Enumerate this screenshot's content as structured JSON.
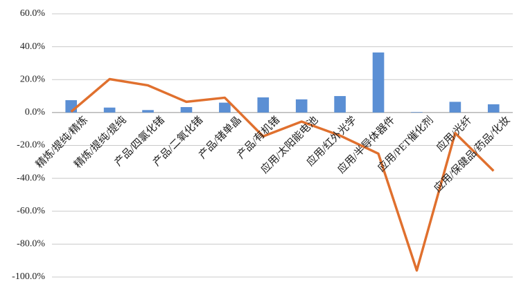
{
  "chart_data": {
    "type": "combo",
    "categories": [
      "精炼/提纯/精炼",
      "精炼/提纯/提纯",
      "产品/四氯化锗",
      "产品/二氧化锗",
      "产品/锗单晶",
      "产品/有机锗",
      "应用/太阳能电池",
      "应用/红外光学",
      "应用/半导体器件",
      "应用/PET催化剂",
      "应用/光纤",
      "应用/保健品/药品/化妆"
    ],
    "series": [
      {
        "type": "bar",
        "color": "#5b8fd4",
        "values": [
          7.5,
          3,
          1.5,
          3.3,
          6,
          9.2,
          8,
          10,
          36.5,
          0.3,
          6.5,
          5
        ]
      },
      {
        "type": "line",
        "color": "#e0702e",
        "values": [
          0.5,
          20.3,
          16.5,
          6.5,
          9,
          -14.5,
          -5.5,
          -14,
          -25,
          -96,
          -12.5,
          -35.5
        ]
      }
    ],
    "ylim": [
      -100,
      60
    ],
    "yticks": [
      {
        "value": -100,
        "label": "-100.0%"
      },
      {
        "value": -80,
        "label": "-80.0%"
      },
      {
        "value": -60,
        "label": "-60.0%"
      },
      {
        "value": -40,
        "label": "-40.0%"
      },
      {
        "value": -20,
        "label": "-20.0%"
      },
      {
        "value": 0,
        "label": "0.0%"
      },
      {
        "value": 20,
        "label": "20.0%"
      },
      {
        "value": 40,
        "label": "40.0%"
      },
      {
        "value": 60,
        "label": "60.0%"
      }
    ],
    "grid": true
  }
}
